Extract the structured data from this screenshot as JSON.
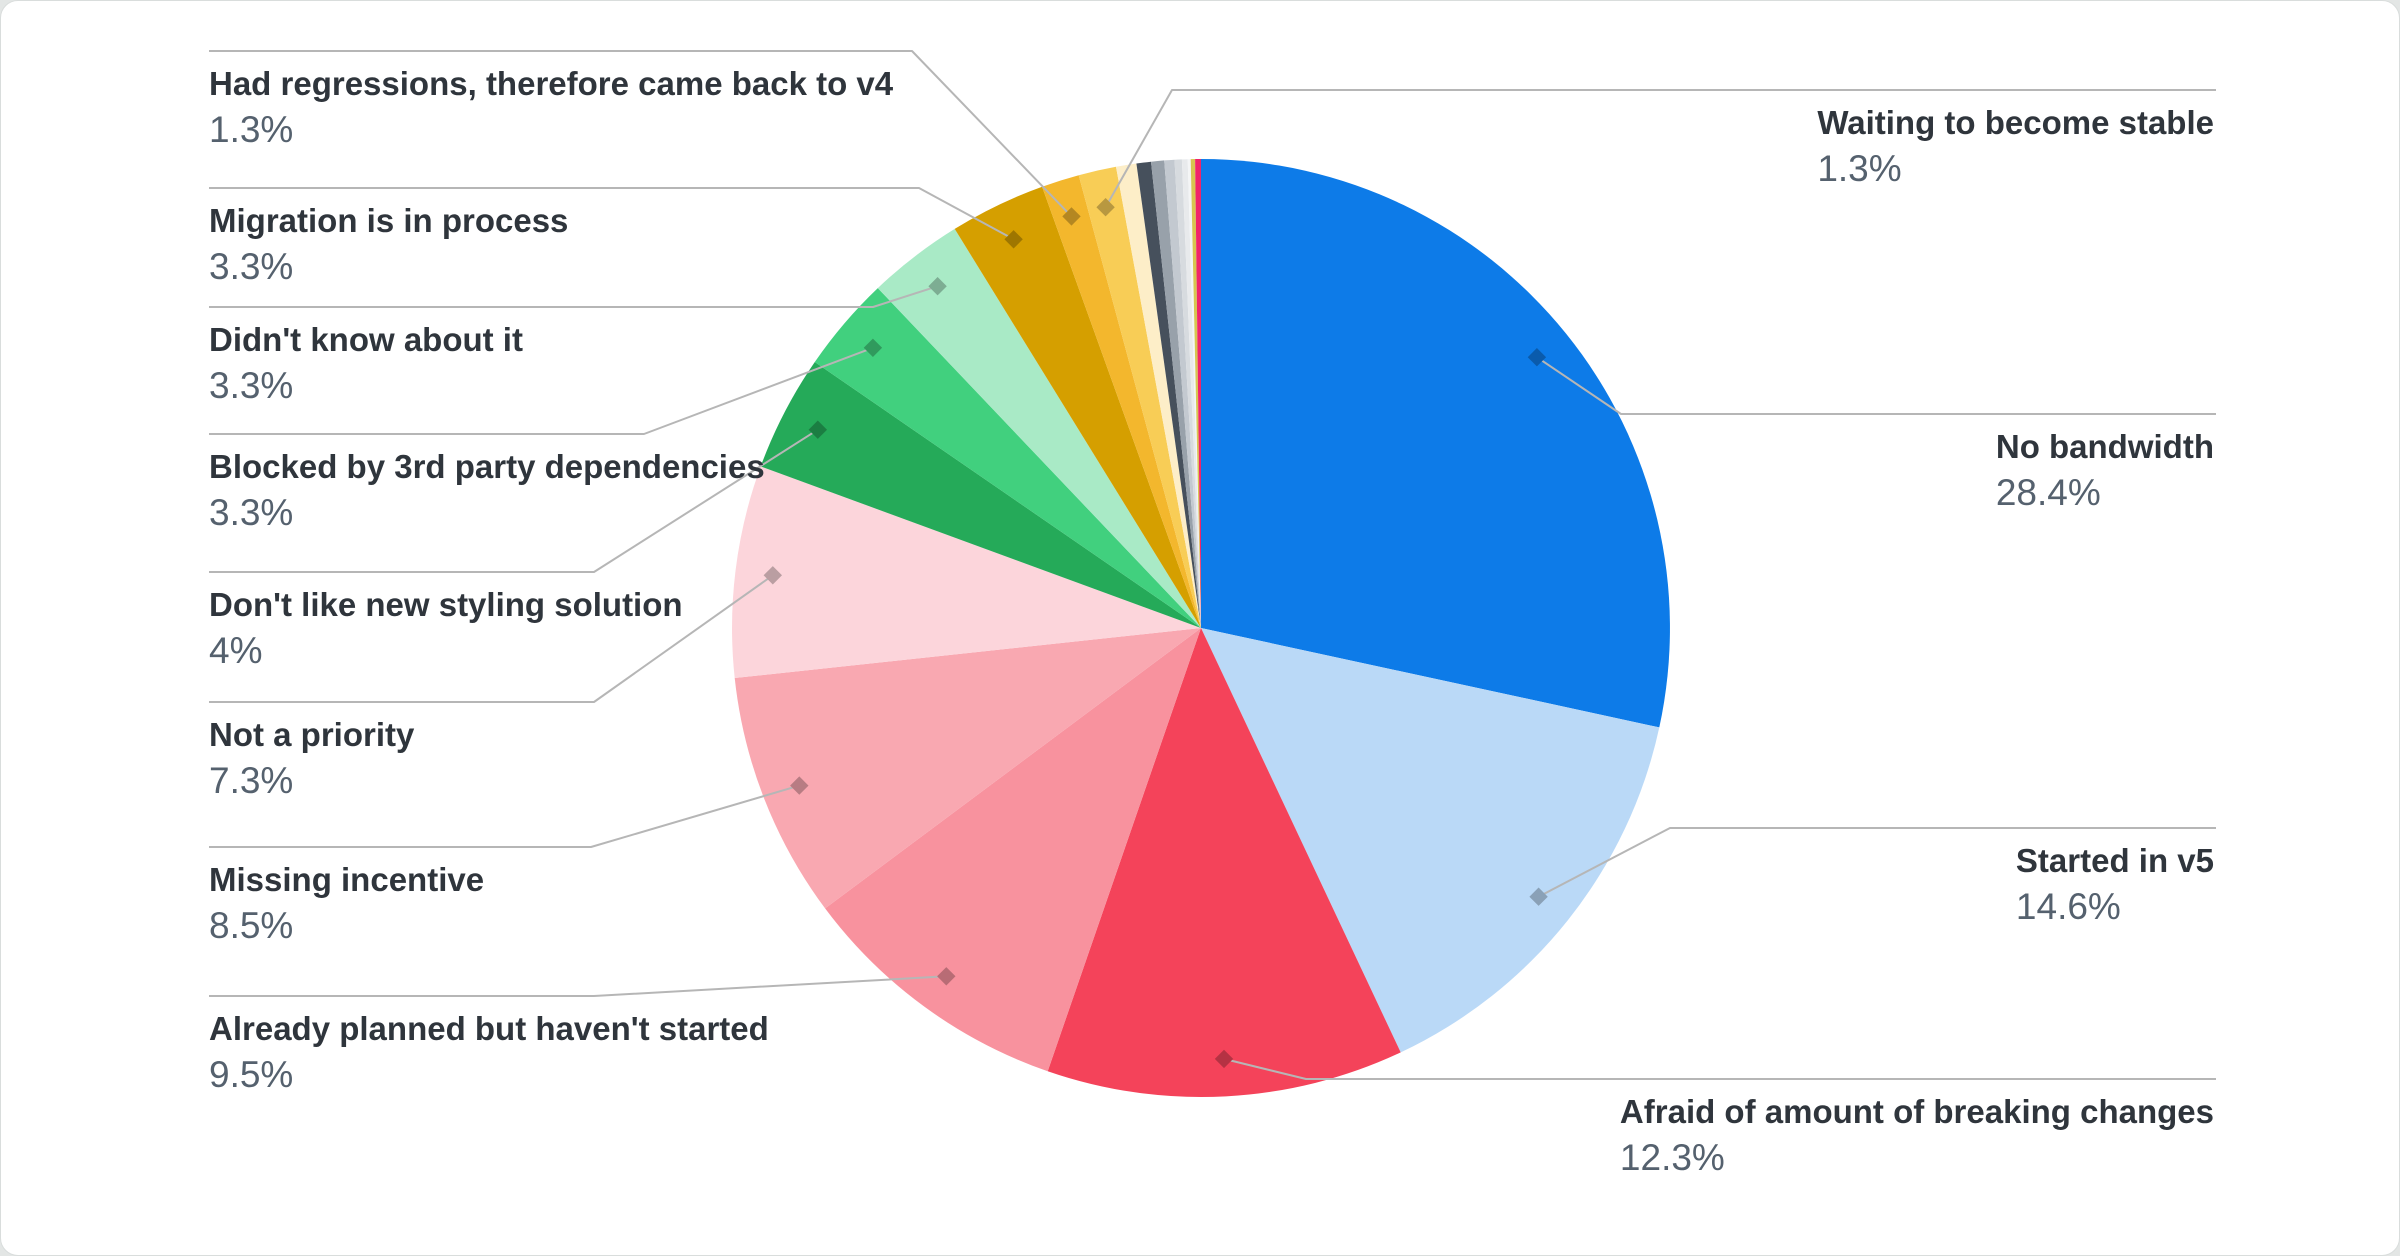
{
  "page": {
    "background_color": "#e3e6e5",
    "card_background_color": "#ffffff"
  },
  "chart_data": {
    "type": "pie",
    "title": "",
    "legend_position": "none",
    "start_angle_deg": 0,
    "direction": "clockwise",
    "label_style": {
      "title_color": "#2f353c",
      "percent_color": "#55616e",
      "line_color": "#b6b6b6"
    },
    "slices": [
      {
        "label": "No bandwidth",
        "value": 28.4,
        "display": "28.4%",
        "color": "#0d7be8",
        "side": "right"
      },
      {
        "label": "Started in v5",
        "value": 14.6,
        "display": "14.6%",
        "color": "#bad9f7",
        "side": "right"
      },
      {
        "label": "Afraid of amount of breaking changes",
        "value": 12.3,
        "display": "12.3%",
        "color": "#f4435a",
        "side": "right"
      },
      {
        "label": "Already planned but haven't started",
        "value": 9.5,
        "display": "9.5%",
        "color": "#f8929e",
        "side": "left"
      },
      {
        "label": "Missing incentive",
        "value": 8.5,
        "display": "8.5%",
        "color": "#f9a8b1",
        "side": "left"
      },
      {
        "label": "Not a priority",
        "value": 7.3,
        "display": "7.3%",
        "color": "#fcd5db",
        "side": "left"
      },
      {
        "label": "Don't like new styling solution",
        "value": 4,
        "display": "4%",
        "color": "#25aa59",
        "side": "left"
      },
      {
        "label": "Blocked by 3rd party dependencies",
        "value": 3.3,
        "display": "3.3%",
        "color": "#41d07e",
        "side": "left"
      },
      {
        "label": "Didn't know about it",
        "value": 3.3,
        "display": "3.3%",
        "color": "#a9eac6",
        "side": "left"
      },
      {
        "label": "Migration is in process",
        "value": 3.3,
        "display": "3.3%",
        "color": "#d59f00",
        "side": "left"
      },
      {
        "label": "Had regressions, therefore came back to v4",
        "value": 1.3,
        "display": "1.3%",
        "color": "#f3b72d",
        "side": "left"
      },
      {
        "label": "Waiting to become stable",
        "value": 1.3,
        "display": "1.3%",
        "color": "#f8cd56",
        "side": "right"
      }
    ],
    "unlabeled_slices": [
      {
        "color": "#fdeec8",
        "value": 0.7
      },
      {
        "color": "#46505c",
        "value": 0.5
      },
      {
        "color": "#98a1aa",
        "value": 0.45
      },
      {
        "color": "#c3c9d0",
        "value": 0.35
      },
      {
        "color": "#d7dbdf",
        "value": 0.25
      },
      {
        "color": "#e8eaec",
        "value": 0.2
      },
      {
        "color": "#f4f5f6",
        "value": 0.1
      },
      {
        "color": "#d7c64f",
        "value": 0.15
      },
      {
        "color": "#f1246b",
        "value": 0.2
      }
    ]
  }
}
